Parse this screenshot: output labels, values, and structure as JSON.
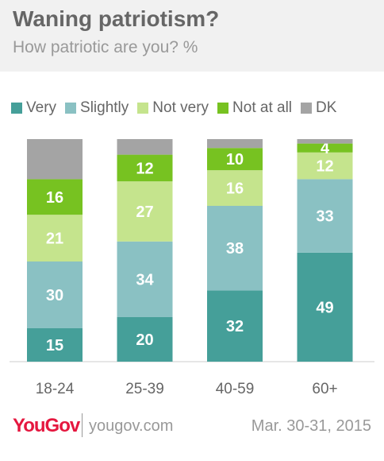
{
  "header": {
    "title": "Waning patriotism?",
    "subtitle": "How patriotic are you? %"
  },
  "footer": {
    "logo": "YouGov",
    "site": "yougov.com",
    "date": "Mar. 30-31, 2015"
  },
  "chart_data": {
    "type": "bar",
    "stacked": true,
    "categories": [
      "18-24",
      "25-39",
      "40-59",
      "60+"
    ],
    "legend_position": "top",
    "grid": false,
    "series": [
      {
        "name": "Very",
        "color": "#459f99",
        "values": [
          15,
          20,
          32,
          49
        ],
        "labels": [
          "15",
          "20",
          "32",
          "49"
        ]
      },
      {
        "name": "Slightly",
        "color": "#8ac1c3",
        "values": [
          30,
          34,
          38,
          33
        ],
        "labels": [
          "30",
          "34",
          "38",
          "33"
        ]
      },
      {
        "name": "Not very",
        "color": "#c5e48d",
        "values": [
          21,
          27,
          16,
          12
        ],
        "labels": [
          "21",
          "27",
          "16",
          "12"
        ]
      },
      {
        "name": "Not at all",
        "color": "#77c221",
        "values": [
          16,
          12,
          10,
          4
        ],
        "labels": [
          "16",
          "12",
          "10",
          "4"
        ]
      },
      {
        "name": "DK",
        "color": "#a4a4a4",
        "values": [
          18,
          7,
          4,
          2
        ],
        "labels": [
          "",
          "",
          "",
          ""
        ]
      }
    ]
  }
}
